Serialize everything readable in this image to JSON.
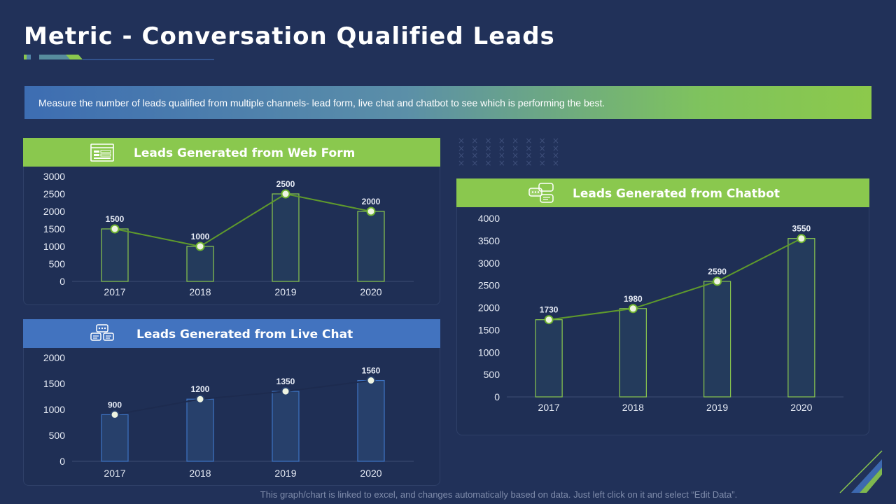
{
  "page": {
    "title": "Metric - Conversation Qualified Leads",
    "banner_text": "Measure the number of leads qualified from multiple channels- lead form, live chat and chatbot to see which is performing the best.",
    "footnote": "This graph/chart is linked to excel, and changes automatically based on data. Just left click on it and select “Edit Data”."
  },
  "colors": {
    "background": "#213159",
    "accent_green": "#8ac84e",
    "accent_blue": "#4273bf",
    "bar_fill": "#243b5c",
    "line_green": "#5f9a2c",
    "line_blue": "#1d2b4f"
  },
  "panels": {
    "web_form": {
      "title": "Leads Generated from Web Form",
      "icon": "web-form-icon"
    },
    "live_chat": {
      "title": "Leads Generated from Live Chat",
      "icon": "live-chat-icon"
    },
    "chatbot": {
      "title": "Leads Generated from Chatbot",
      "icon": "chatbot-icon"
    }
  },
  "chart_data": [
    {
      "id": "web_form",
      "type": "bar",
      "title": "Leads Generated from Web Form",
      "categories": [
        "2017",
        "2018",
        "2019",
        "2020"
      ],
      "values": [
        1500,
        1000,
        2500,
        2000
      ],
      "overlay": "line",
      "ylim": [
        0,
        3000
      ],
      "yticks": [
        0,
        500,
        1000,
        1500,
        2000,
        2500,
        3000
      ]
    },
    {
      "id": "live_chat",
      "type": "bar",
      "title": "Leads Generated from Live Chat",
      "categories": [
        "2017",
        "2018",
        "2019",
        "2020"
      ],
      "values": [
        900,
        1200,
        1350,
        1560
      ],
      "overlay": "line",
      "ylim": [
        0,
        2000
      ],
      "yticks": [
        0,
        500,
        1000,
        1500,
        2000
      ]
    },
    {
      "id": "chatbot",
      "type": "bar",
      "title": "Leads Generated from Chatbot",
      "categories": [
        "2017",
        "2018",
        "2019",
        "2020"
      ],
      "values": [
        1730,
        1980,
        2590,
        3550
      ],
      "overlay": "line",
      "ylim": [
        0,
        4000
      ],
      "yticks": [
        0,
        500,
        1000,
        1500,
        2000,
        2500,
        3000,
        3500,
        4000
      ]
    }
  ]
}
